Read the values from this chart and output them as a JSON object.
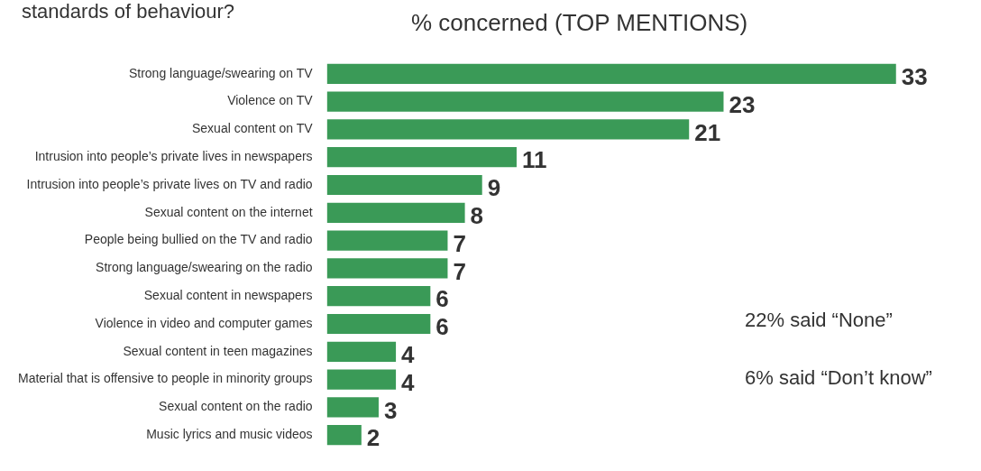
{
  "chart_data": {
    "type": "bar",
    "orientation": "horizontal",
    "title": "standards of behaviour?",
    "subtitle": "% concerned (TOP MENTIONS)",
    "categories": [
      "Strong language/swearing on TV",
      "Violence on TV",
      "Sexual content on TV",
      "Intrusion into people’s private lives in newspapers",
      "Intrusion into people’s private lives on TV and radio",
      "Sexual content on the internet",
      "People being bullied on the TV and radio",
      "Strong language/swearing on the radio",
      "Sexual content in newspapers",
      "Violence in video and computer games",
      "Sexual content in teen magazines",
      "Material that is offensive to people in minority groups",
      "Sexual content on the radio",
      "Music lyrics and music videos"
    ],
    "values": [
      33,
      23,
      21,
      11,
      9,
      8,
      7,
      7,
      6,
      6,
      4,
      4,
      3,
      2
    ],
    "color": "#3a9a57",
    "data_labels": true,
    "grid": false,
    "legend": false,
    "annotations": [
      "22% said “None”",
      "6% said “Don’t know”"
    ]
  }
}
